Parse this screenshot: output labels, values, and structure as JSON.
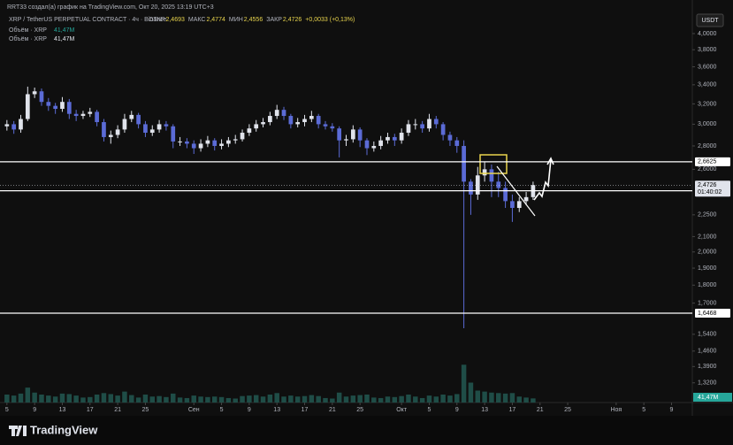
{
  "chart_data": {
    "type": "candlestick",
    "attribution": "RRT33 создал(а) график на TradingView.com, Окт 20, 2025 13:19 UTC+3",
    "symbol": "XRP / TetherUS PERPETUAL CONTRACT · 4ч · Binance",
    "ohlc_legend": [
      {
        "name": "ОТКР",
        "value": "2,4693"
      },
      {
        "name": "МАКС",
        "value": "2,4774"
      },
      {
        "name": "МИН",
        "value": "2,4556"
      },
      {
        "name": "ЗАКР",
        "value": "2,4726"
      }
    ],
    "change": "+0,0033 (+0,13%)",
    "volume_legend": [
      "Объём · XRP",
      "Объём · XRP"
    ],
    "currency": "USDT",
    "brand": "TradingView",
    "countdown": "01:40:02",
    "x": [
      "2025-08-05",
      "2025-08-06",
      "2025-08-07",
      "2025-08-08",
      "2025-08-09",
      "2025-08-10",
      "2025-08-11",
      "2025-08-12",
      "2025-08-13",
      "2025-08-14",
      "2025-08-15",
      "2025-08-16",
      "2025-08-17",
      "2025-08-18",
      "2025-08-19",
      "2025-08-20",
      "2025-08-21",
      "2025-08-22",
      "2025-08-23",
      "2025-08-24",
      "2025-08-25",
      "2025-08-26",
      "2025-08-27",
      "2025-08-28",
      "2025-08-29",
      "2025-08-30",
      "2025-08-31",
      "2025-09-01",
      "2025-09-02",
      "2025-09-03",
      "2025-09-04",
      "2025-09-05",
      "2025-09-06",
      "2025-09-07",
      "2025-09-08",
      "2025-09-09",
      "2025-09-10",
      "2025-09-11",
      "2025-09-12",
      "2025-09-13",
      "2025-09-14",
      "2025-09-15",
      "2025-09-16",
      "2025-09-17",
      "2025-09-18",
      "2025-09-19",
      "2025-09-20",
      "2025-09-21",
      "2025-09-22",
      "2025-09-23",
      "2025-09-24",
      "2025-09-25",
      "2025-09-26",
      "2025-09-27",
      "2025-09-28",
      "2025-09-29",
      "2025-09-30",
      "2025-10-01",
      "2025-10-02",
      "2025-10-03",
      "2025-10-04",
      "2025-10-05",
      "2025-10-06",
      "2025-10-07",
      "2025-10-08",
      "2025-10-09",
      "2025-10-10",
      "2025-10-11",
      "2025-10-12",
      "2025-10-13",
      "2025-10-14",
      "2025-10-15",
      "2025-10-16",
      "2025-10-17",
      "2025-10-18",
      "2025-10-19",
      "2025-10-20"
    ],
    "open": [
      2.98,
      3.0,
      2.95,
      3.05,
      3.3,
      3.33,
      3.22,
      3.18,
      3.15,
      3.22,
      3.1,
      3.08,
      3.1,
      3.12,
      3.02,
      2.88,
      2.9,
      2.95,
      3.05,
      3.09,
      3.0,
      2.92,
      2.95,
      3.0,
      2.98,
      2.84,
      2.84,
      2.82,
      2.78,
      2.82,
      2.85,
      2.8,
      2.82,
      2.85,
      2.86,
      2.92,
      2.96,
      3.0,
      3.02,
      3.08,
      3.14,
      3.08,
      3.0,
      3.02,
      3.05,
      3.08,
      3.0,
      2.98,
      2.96,
      2.85,
      2.86,
      2.95,
      2.85,
      2.78,
      2.8,
      2.85,
      2.88,
      2.85,
      2.92,
      3.0,
      3.0,
      2.96,
      3.05,
      3.0,
      2.9,
      2.85,
      2.8,
      2.5,
      2.4,
      2.55,
      2.6,
      2.5,
      2.45,
      2.35,
      2.3,
      2.35,
      2.38
    ],
    "high": [
      3.04,
      3.03,
      3.09,
      3.38,
      3.37,
      3.36,
      3.26,
      3.21,
      3.27,
      3.25,
      3.14,
      3.13,
      3.16,
      3.14,
      3.05,
      2.94,
      2.99,
      3.1,
      3.13,
      3.11,
      3.03,
      2.99,
      3.04,
      3.03,
      3.0,
      2.88,
      2.87,
      2.85,
      2.86,
      2.89,
      2.87,
      2.86,
      2.88,
      2.9,
      2.95,
      3.0,
      3.04,
      3.06,
      3.12,
      3.19,
      3.17,
      3.1,
      3.06,
      3.09,
      3.13,
      3.1,
      3.03,
      3.01,
      2.98,
      2.9,
      2.99,
      2.97,
      2.87,
      2.84,
      2.89,
      2.92,
      2.91,
      2.96,
      3.04,
      3.05,
      3.03,
      3.1,
      3.08,
      3.02,
      2.93,
      2.88,
      2.85,
      2.52,
      2.62,
      2.66,
      2.64,
      2.58,
      2.5,
      2.4,
      2.38,
      2.42,
      2.5
    ],
    "low": [
      2.94,
      2.91,
      2.92,
      3.03,
      3.26,
      3.18,
      3.13,
      3.1,
      3.12,
      3.05,
      3.03,
      3.05,
      3.07,
      2.98,
      2.84,
      2.82,
      2.87,
      2.92,
      3.02,
      2.96,
      2.88,
      2.89,
      2.92,
      2.94,
      2.78,
      2.8,
      2.78,
      2.73,
      2.75,
      2.79,
      2.76,
      2.77,
      2.79,
      2.82,
      2.84,
      2.89,
      2.93,
      2.97,
      2.99,
      3.05,
      3.04,
      2.96,
      2.97,
      2.98,
      3.02,
      2.96,
      2.95,
      2.93,
      2.7,
      2.8,
      2.83,
      2.79,
      2.72,
      2.75,
      2.77,
      2.82,
      2.8,
      2.82,
      2.89,
      2.95,
      2.92,
      2.93,
      2.96,
      2.85,
      2.8,
      2.74,
      1.57,
      2.25,
      2.36,
      2.5,
      2.38,
      2.38,
      2.3,
      2.2,
      2.27,
      2.32,
      2.36
    ],
    "close": [
      3.0,
      2.95,
      3.05,
      3.3,
      3.33,
      3.22,
      3.18,
      3.15,
      3.22,
      3.1,
      3.08,
      3.1,
      3.12,
      3.02,
      2.88,
      2.9,
      2.95,
      3.05,
      3.09,
      3.0,
      2.92,
      2.95,
      3.0,
      2.98,
      2.84,
      2.84,
      2.82,
      2.78,
      2.82,
      2.85,
      2.8,
      2.82,
      2.85,
      2.86,
      2.92,
      2.96,
      3.0,
      3.02,
      3.08,
      3.14,
      3.08,
      3.0,
      3.02,
      3.05,
      3.08,
      3.0,
      2.98,
      2.96,
      2.85,
      2.86,
      2.95,
      2.85,
      2.78,
      2.8,
      2.85,
      2.88,
      2.85,
      2.92,
      3.0,
      3.0,
      2.96,
      3.05,
      3.0,
      2.9,
      2.85,
      2.8,
      2.5,
      2.4,
      2.55,
      2.6,
      2.5,
      2.45,
      2.35,
      2.3,
      2.35,
      2.38,
      2.4726
    ],
    "up_color": "#e0e3eb",
    "down_color": "#5b6bd6",
    "volume": {
      "values": [
        80,
        70,
        90,
        150,
        100,
        80,
        70,
        60,
        90,
        85,
        70,
        50,
        55,
        80,
        95,
        85,
        70,
        110,
        75,
        50,
        80,
        60,
        65,
        55,
        90,
        50,
        45,
        70,
        60,
        55,
        60,
        55,
        45,
        40,
        65,
        70,
        75,
        60,
        80,
        95,
        60,
        70,
        60,
        65,
        75,
        65,
        45,
        40,
        100,
        60,
        70,
        75,
        80,
        50,
        45,
        60,
        55,
        65,
        80,
        60,
        45,
        70,
        60,
        80,
        70,
        85,
        380,
        200,
        120,
        110,
        100,
        95,
        90,
        95,
        60,
        50,
        41.47
      ],
      "last_label": "41,47M",
      "vlim": [
        0,
        400
      ],
      "color": "#1f4d47"
    },
    "xlim": [
      "2025-08-04",
      "2025-11-12"
    ],
    "xticks": [
      {
        "value": "2025-08-05",
        "label": "5"
      },
      {
        "value": "2025-08-09",
        "label": "9"
      },
      {
        "value": "2025-08-13",
        "label": "13"
      },
      {
        "value": "2025-08-17",
        "label": "17"
      },
      {
        "value": "2025-08-21",
        "label": "21"
      },
      {
        "value": "2025-08-25",
        "label": "25"
      },
      {
        "value": "2025-09-01",
        "label": "Сен"
      },
      {
        "value": "2025-09-05",
        "label": "5"
      },
      {
        "value": "2025-09-09",
        "label": "9"
      },
      {
        "value": "2025-09-13",
        "label": "13"
      },
      {
        "value": "2025-09-17",
        "label": "17"
      },
      {
        "value": "2025-09-21",
        "label": "21"
      },
      {
        "value": "2025-09-25",
        "label": "25"
      },
      {
        "value": "2025-10-01",
        "label": "Окт"
      },
      {
        "value": "2025-10-05",
        "label": "5"
      },
      {
        "value": "2025-10-09",
        "label": "9"
      },
      {
        "value": "2025-10-13",
        "label": "13"
      },
      {
        "value": "2025-10-17",
        "label": "17"
      },
      {
        "value": "2025-10-21",
        "label": "21"
      },
      {
        "value": "2025-10-25",
        "label": "25"
      },
      {
        "value": "2025-11-01",
        "label": "Ноя"
      },
      {
        "value": "2025-11-05",
        "label": "5"
      },
      {
        "value": "2025-11-09",
        "label": "9"
      }
    ],
    "ylim": [
      1.24,
      4.45
    ],
    "log_scale": true,
    "yticks": [
      {
        "value": 4,
        "label": "4,0000"
      },
      {
        "value": 3.8,
        "label": "3,8000"
      },
      {
        "value": 3.6,
        "label": "3,6000"
      },
      {
        "value": 3.4,
        "label": "3,4000"
      },
      {
        "value": 3.2,
        "label": "3,2000"
      },
      {
        "value": 3,
        "label": "3,0000"
      },
      {
        "value": 2.8,
        "label": "2,8000"
      },
      {
        "value": 2.6,
        "label": "2,6000"
      },
      {
        "value": 2.25,
        "label": "2,2500"
      },
      {
        "value": 2.1,
        "label": "2,1000"
      },
      {
        "value": 2,
        "label": "2,0000"
      },
      {
        "value": 1.9,
        "label": "1,9000"
      },
      {
        "value": 1.8,
        "label": "1,8000"
      },
      {
        "value": 1.7,
        "label": "1,7000"
      },
      {
        "value": 1.54,
        "label": "1,5400"
      },
      {
        "value": 1.46,
        "label": "1,4600"
      },
      {
        "value": 1.39,
        "label": "1,3900"
      },
      {
        "value": 1.32,
        "label": "1,3200"
      }
    ],
    "levels": {
      "values": [
        2.6625,
        2.4289,
        1.6468
      ],
      "value_labels": [
        "2,6625",
        "2,4289",
        "1,6468"
      ]
    },
    "last_price": {
      "value": 2.4726,
      "label": "2,4726"
    }
  }
}
